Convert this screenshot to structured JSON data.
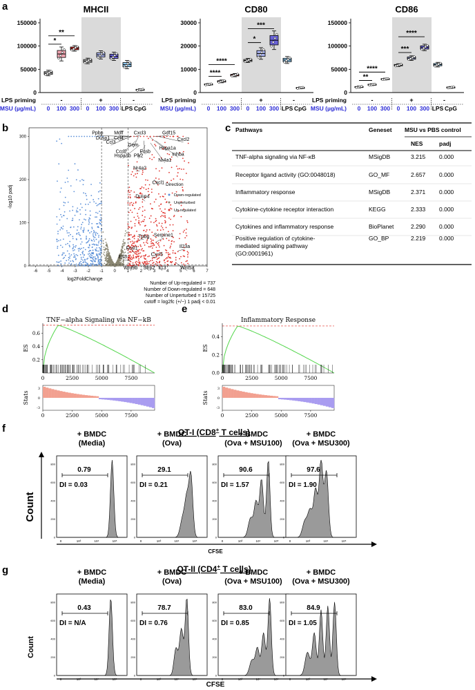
{
  "panels": {
    "a": "a",
    "b": "b",
    "c": "c",
    "d": "d",
    "e": "e",
    "f": "f",
    "g": "g"
  },
  "panel_a": {
    "row_labels": {
      "lps": "LPS priming",
      "msu": "MSU (µg/mL)"
    },
    "x_groups": [
      "0",
      "100",
      "300",
      "0",
      "100",
      "300",
      "LPS",
      "CpG"
    ],
    "lps_signs": [
      "-",
      "+",
      "-"
    ],
    "colors": {
      "c0": "#cfcfcf",
      "c100": "#f2a6b2",
      "c300": "#e0302a",
      "lps_c100": "#aab4ee",
      "lps_c300": "#6a63d8",
      "lps": "#8cc7ef",
      "cpg": "#e6e6e6",
      "shade": "#dadada",
      "msu_label": "#2b2bd6"
    },
    "charts": [
      {
        "title": "MHCII",
        "ylim": [
          0,
          150000
        ],
        "ticks": [
          "0",
          "50000",
          "100000",
          "150000"
        ],
        "values": [
          42000,
          83000,
          95000,
          68000,
          81000,
          78000,
          60000,
          6000
        ],
        "spreads": [
          6000,
          15000,
          6000,
          6000,
          9000,
          9000,
          9000,
          2000
        ],
        "brackets": [
          {
            "from": 0,
            "to": 1,
            "label": "*",
            "y": 104000
          },
          {
            "from": 0,
            "to": 2,
            "label": "**",
            "y": 122000
          }
        ]
      },
      {
        "title": "CD80",
        "ylim": [
          0,
          30000
        ],
        "ticks": [
          "0",
          "10000",
          "20000",
          "30000"
        ],
        "values": [
          3500,
          4800,
          7500,
          13800,
          16800,
          22500,
          14000,
          2000
        ],
        "spreads": [
          400,
          600,
          700,
          900,
          2500,
          4000,
          1500,
          400
        ],
        "brackets": [
          {
            "from": 0,
            "to": 1,
            "label": "****",
            "y": 7000
          },
          {
            "from": 0,
            "to": 2,
            "label": "****",
            "y": 12000
          },
          {
            "from": 3,
            "to": 4,
            "label": "*",
            "y": 21500
          },
          {
            "from": 3,
            "to": 5,
            "label": "***",
            "y": 27500
          }
        ]
      },
      {
        "title": "CD86",
        "ylim": [
          0,
          150000
        ],
        "ticks": [
          "0",
          "50000",
          "100000",
          "150000"
        ],
        "values": [
          12000,
          17000,
          29000,
          59000,
          74000,
          97000,
          60000,
          11000
        ],
        "spreads": [
          2000,
          2000,
          2000,
          3000,
          5000,
          7000,
          5000,
          2000
        ],
        "brackets": [
          {
            "from": 0,
            "to": 1,
            "label": "**",
            "y": 26000
          },
          {
            "from": 0,
            "to": 2,
            "label": "****",
            "y": 44000
          },
          {
            "from": 3,
            "to": 4,
            "label": "***",
            "y": 86000
          },
          {
            "from": 3,
            "to": 5,
            "label": "****",
            "y": 120000
          }
        ]
      }
    ]
  },
  "chart_data": [
    {
      "type": "scatter",
      "xlabel": "log2FoldChange",
      "ylabel": "-log10 padj",
      "xlim": [
        -6.5,
        7
      ],
      "ylim": [
        0,
        320
      ],
      "x_ticks": [
        "-6",
        "-5",
        "-4",
        "-3",
        "-2",
        "-1",
        "0",
        "1",
        "2",
        "3",
        "4",
        "5",
        "6",
        "7"
      ],
      "y_ticks": [
        "0",
        "100",
        "200",
        "300"
      ],
      "legend": {
        "title": "Direction",
        "items": [
          "Down-regulated",
          "Unperturbed",
          "Up-regulated"
        ],
        "colors": [
          "#5a8fd8",
          "#8a8672",
          "#e0302a"
        ]
      },
      "genes": [
        "Ppbp",
        "Mdff",
        "Cxcl3",
        "Gdf15",
        "Dusp1",
        "Ccl4",
        "Cxcl2",
        "Ccl3",
        "Gem",
        "Hspa1a",
        "Ccrl2",
        "Fosb",
        "Inhba",
        "Hspa1b",
        "Plk2",
        "Nr4a1",
        "Nr4a2",
        "Cxcl1",
        "Dusp4",
        "Tpbg",
        "Serpine1",
        "Fosl1",
        "Il23a",
        "Cxcl5",
        "Erl3",
        "Wnt9b",
        "Sfrp2",
        "Il13",
        "Wnt5a"
      ],
      "summary": [
        "Number of Up-regulated = 737",
        "Number of Down-regulated = 648",
        "Number of Unperturbed = 15725",
        "cutoff = log2fc (+/−) 1 padj < 0.01"
      ]
    },
    {
      "type": "table",
      "columns": [
        "Pathways",
        "Geneset",
        "MSU vs PBS control"
      ],
      "subcolumns": [
        "NES",
        "padj"
      ],
      "rows": [
        [
          "TNF-alpha signaling via NF-κB",
          "MSigDB",
          "3.215",
          "0.000"
        ],
        [
          "Receptor ligand activity (GO:0048018)",
          "GO_MF",
          "2.657",
          "0.000"
        ],
        [
          "Inflammatory response",
          "MSigDB",
          "2.371",
          "0.000"
        ],
        [
          "Cytokine-cytokine receptor interaction",
          "KEGG",
          "2.333",
          "0.000"
        ],
        [
          "Cytokines and inflammatory response",
          "BioPlanet",
          "2.290",
          "0.000"
        ],
        [
          "Positive regulation of cytokine-mediated signaling pathway (GO:0001961)",
          "GO_BP",
          "2.219",
          "0.000"
        ]
      ]
    },
    {
      "type": "line",
      "title": "TNF−alpha Signaling via NF−kB",
      "ylabel": "ES",
      "stats_label": "Stats",
      "ylim": [
        0,
        0.75
      ],
      "y_ticks": [
        "0.2",
        "0.4",
        "0.6"
      ],
      "x_ticks": [
        "0",
        "2500",
        "5000",
        "7500"
      ],
      "xlim": [
        0,
        9500
      ],
      "peak": 0.72,
      "peak_x": 1300
    },
    {
      "type": "line",
      "title": "Inflammatory Response",
      "ylabel": "ES",
      "stats_label": "Stats",
      "ylim": [
        0,
        0.55
      ],
      "y_ticks": [
        "0.0",
        "0.2",
        "0.4"
      ],
      "x_ticks": [
        "0",
        "2500",
        "5000",
        "7500"
      ],
      "xlim": [
        0,
        9500
      ],
      "peak": 0.52,
      "peak_x": 1300
    }
  ],
  "panel_f": {
    "title": "OT-I (CD8",
    "title_sup": "+",
    "title_end": " T cells)",
    "ylabel": "Count",
    "xlabel": "CFSE",
    "samples": [
      {
        "name1": "+ BMDC",
        "name2": "(Media)",
        "pct": "0.79",
        "di": "DI = 0.03"
      },
      {
        "name1": "+ BMDC",
        "name2": "(Ova)",
        "pct": "29.1",
        "di": "DI = 0.21"
      },
      {
        "name1": "+ BMDC",
        "name2": "(Ova + MSU100)",
        "pct": "90.6",
        "di": "DI = 1.57"
      },
      {
        "name1": "+ BMDC",
        "name2": "(Ova + MSU300)",
        "pct": "97.6",
        "di": "DI = 1.90"
      }
    ]
  },
  "panel_g": {
    "title": "OT-II (CD4",
    "title_sup": "+",
    "title_end": " T cells)",
    "ylabel": "Count",
    "xlabel": "CFSE",
    "samples": [
      {
        "name1": "+ BMDC",
        "name2": "(Media)",
        "pct": "0.43",
        "di": "DI = N/A"
      },
      {
        "name1": "+ BMDC",
        "name2": "(Ova)",
        "pct": "78.7",
        "di": "DI = 0.76"
      },
      {
        "name1": "+ BMDC",
        "name2": "(Ova + MSU100)",
        "pct": "83.0",
        "di": "DI = 0.85"
      },
      {
        "name1": "+ BMDC",
        "name2": "(Ova + MSU300)",
        "pct": "84.9",
        "di": "DI = 1.05"
      }
    ]
  }
}
